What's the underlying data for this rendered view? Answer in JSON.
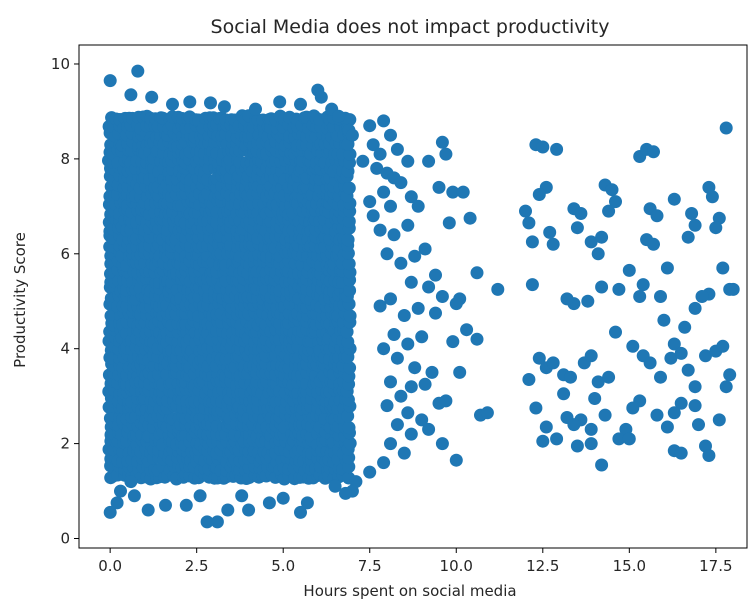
{
  "chart_data": {
    "type": "scatter",
    "title": "Social Media does not impact productivity",
    "xlabel": "Hours spent on social media",
    "ylabel": "Productivity Score",
    "xlim": [
      -0.9,
      18.4
    ],
    "ylim": [
      -0.2,
      10.4
    ],
    "xticks": [
      0.0,
      2.5,
      5.0,
      7.5,
      10.0,
      12.5,
      15.0,
      17.5
    ],
    "xtick_labels": [
      "0.0",
      "2.5",
      "5.0",
      "7.5",
      "10.0",
      "12.5",
      "15.0",
      "17.5"
    ],
    "yticks": [
      0,
      2,
      4,
      6,
      8,
      10
    ],
    "ytick_labels": [
      "0",
      "2",
      "4",
      "6",
      "8",
      "10"
    ],
    "grid": false,
    "marker_color": "#1f77b4",
    "dense_region": {
      "x_range": [
        0.0,
        7.0
      ],
      "y_range": [
        1.3,
        8.9
      ]
    },
    "series": [
      {
        "points": [
          [
            0.0,
            9.65
          ],
          [
            0.8,
            9.85
          ],
          [
            0.6,
            9.35
          ],
          [
            1.2,
            9.3
          ],
          [
            1.8,
            9.15
          ],
          [
            2.3,
            9.2
          ],
          [
            2.9,
            9.18
          ],
          [
            3.3,
            9.1
          ],
          [
            4.2,
            9.05
          ],
          [
            4.9,
            9.2
          ],
          [
            5.5,
            9.15
          ],
          [
            6.0,
            9.45
          ],
          [
            6.1,
            9.3
          ],
          [
            6.4,
            9.05
          ],
          [
            6.6,
            8.9
          ],
          [
            6.9,
            8.6
          ],
          [
            7.0,
            8.5
          ],
          [
            7.5,
            8.7
          ],
          [
            7.6,
            8.3
          ],
          [
            7.9,
            8.8
          ],
          [
            8.1,
            8.5
          ],
          [
            8.3,
            8.2
          ],
          [
            7.8,
            8.1
          ],
          [
            7.3,
            7.95
          ],
          [
            7.7,
            7.8
          ],
          [
            8.0,
            7.7
          ],
          [
            8.2,
            7.6
          ],
          [
            8.6,
            7.95
          ],
          [
            8.4,
            7.5
          ],
          [
            7.9,
            7.3
          ],
          [
            7.5,
            7.1
          ],
          [
            8.1,
            7.0
          ],
          [
            8.7,
            7.2
          ],
          [
            8.9,
            7.0
          ],
          [
            9.2,
            7.95
          ],
          [
            9.6,
            8.35
          ],
          [
            9.7,
            8.1
          ],
          [
            9.9,
            7.3
          ],
          [
            9.5,
            7.4
          ],
          [
            9.8,
            6.65
          ],
          [
            10.4,
            6.75
          ],
          [
            10.2,
            7.3
          ],
          [
            7.6,
            6.8
          ],
          [
            7.8,
            6.5
          ],
          [
            8.2,
            6.4
          ],
          [
            8.6,
            6.6
          ],
          [
            8.0,
            6.0
          ],
          [
            8.4,
            5.8
          ],
          [
            8.8,
            5.95
          ],
          [
            9.1,
            6.1
          ],
          [
            9.4,
            5.55
          ],
          [
            9.2,
            5.3
          ],
          [
            9.6,
            5.1
          ],
          [
            8.7,
            5.4
          ],
          [
            8.1,
            5.05
          ],
          [
            7.8,
            4.9
          ],
          [
            8.5,
            4.7
          ],
          [
            8.9,
            4.85
          ],
          [
            9.4,
            4.75
          ],
          [
            10.1,
            5.05
          ],
          [
            10.6,
            5.6
          ],
          [
            11.2,
            5.25
          ],
          [
            10.0,
            4.95
          ],
          [
            10.3,
            4.4
          ],
          [
            10.6,
            4.2
          ],
          [
            9.9,
            4.15
          ],
          [
            8.2,
            4.3
          ],
          [
            8.6,
            4.1
          ],
          [
            9.0,
            4.25
          ],
          [
            7.9,
            4.0
          ],
          [
            8.3,
            3.8
          ],
          [
            8.8,
            3.6
          ],
          [
            9.3,
            3.5
          ],
          [
            10.1,
            3.5
          ],
          [
            8.1,
            3.3
          ],
          [
            8.7,
            3.2
          ],
          [
            9.1,
            3.25
          ],
          [
            9.7,
            2.9
          ],
          [
            8.4,
            3.0
          ],
          [
            8.0,
            2.8
          ],
          [
            8.6,
            2.65
          ],
          [
            9.0,
            2.5
          ],
          [
            9.5,
            2.85
          ],
          [
            10.7,
            2.6
          ],
          [
            10.9,
            2.65
          ],
          [
            8.3,
            2.4
          ],
          [
            8.7,
            2.2
          ],
          [
            9.2,
            2.3
          ],
          [
            9.6,
            2.0
          ],
          [
            10.0,
            1.65
          ],
          [
            8.1,
            2.0
          ],
          [
            8.5,
            1.8
          ],
          [
            7.9,
            1.6
          ],
          [
            7.5,
            1.4
          ],
          [
            7.1,
            1.2
          ],
          [
            7.0,
            1.0
          ],
          [
            6.5,
            1.1
          ],
          [
            6.8,
            0.95
          ],
          [
            5.7,
            0.75
          ],
          [
            5.5,
            0.55
          ],
          [
            5.0,
            0.85
          ],
          [
            4.6,
            0.75
          ],
          [
            4.0,
            0.6
          ],
          [
            3.8,
            0.9
          ],
          [
            3.4,
            0.6
          ],
          [
            3.1,
            0.35
          ],
          [
            2.8,
            0.35
          ],
          [
            2.6,
            0.9
          ],
          [
            2.2,
            0.7
          ],
          [
            1.6,
            0.7
          ],
          [
            1.1,
            0.6
          ],
          [
            0.7,
            0.9
          ],
          [
            0.2,
            0.75
          ],
          [
            0.0,
            0.55
          ],
          [
            0.3,
            1.0
          ],
          [
            0.6,
            1.2
          ],
          [
            12.3,
            8.3
          ],
          [
            12.5,
            8.25
          ],
          [
            12.9,
            8.2
          ],
          [
            12.6,
            7.4
          ],
          [
            12.4,
            7.25
          ],
          [
            12.0,
            6.9
          ],
          [
            12.1,
            6.65
          ],
          [
            12.2,
            6.25
          ],
          [
            12.7,
            6.45
          ],
          [
            12.8,
            6.2
          ],
          [
            13.4,
            6.95
          ],
          [
            13.6,
            6.85
          ],
          [
            13.5,
            6.55
          ],
          [
            13.9,
            6.25
          ],
          [
            14.1,
            6.0
          ],
          [
            14.2,
            6.35
          ],
          [
            14.3,
            7.45
          ],
          [
            14.5,
            7.35
          ],
          [
            14.6,
            7.1
          ],
          [
            14.4,
            6.9
          ],
          [
            15.3,
            8.05
          ],
          [
            15.5,
            8.2
          ],
          [
            15.7,
            8.15
          ],
          [
            15.6,
            6.95
          ],
          [
            15.8,
            6.8
          ],
          [
            15.5,
            6.3
          ],
          [
            15.7,
            6.2
          ],
          [
            16.1,
            5.7
          ],
          [
            16.3,
            7.15
          ],
          [
            16.8,
            6.85
          ],
          [
            16.9,
            6.6
          ],
          [
            16.7,
            6.35
          ],
          [
            17.3,
            7.4
          ],
          [
            17.4,
            7.2
          ],
          [
            17.6,
            6.75
          ],
          [
            17.5,
            6.55
          ],
          [
            17.8,
            8.65
          ],
          [
            17.7,
            5.7
          ],
          [
            17.9,
            5.25
          ],
          [
            18.0,
            5.25
          ],
          [
            17.3,
            5.15
          ],
          [
            17.1,
            5.1
          ],
          [
            16.9,
            4.85
          ],
          [
            16.6,
            4.45
          ],
          [
            16.3,
            4.1
          ],
          [
            16.0,
            4.6
          ],
          [
            15.9,
            5.1
          ],
          [
            15.4,
            5.35
          ],
          [
            15.3,
            5.1
          ],
          [
            15.0,
            5.65
          ],
          [
            14.7,
            5.25
          ],
          [
            14.2,
            5.3
          ],
          [
            13.8,
            5.0
          ],
          [
            13.4,
            4.95
          ],
          [
            13.2,
            5.05
          ],
          [
            12.2,
            5.35
          ],
          [
            12.4,
            3.8
          ],
          [
            12.6,
            3.6
          ],
          [
            12.8,
            3.7
          ],
          [
            13.1,
            3.45
          ],
          [
            13.3,
            3.4
          ],
          [
            13.7,
            3.7
          ],
          [
            13.9,
            3.85
          ],
          [
            14.1,
            3.3
          ],
          [
            14.4,
            3.4
          ],
          [
            14.6,
            4.35
          ],
          [
            15.1,
            4.05
          ],
          [
            15.4,
            3.85
          ],
          [
            15.6,
            3.7
          ],
          [
            15.9,
            3.4
          ],
          [
            16.2,
            3.8
          ],
          [
            16.5,
            3.9
          ],
          [
            16.7,
            3.55
          ],
          [
            16.9,
            3.2
          ],
          [
            17.2,
            3.85
          ],
          [
            17.5,
            3.95
          ],
          [
            17.7,
            4.05
          ],
          [
            17.9,
            3.45
          ],
          [
            17.8,
            3.2
          ],
          [
            17.6,
            2.5
          ],
          [
            17.2,
            1.95
          ],
          [
            16.9,
            2.8
          ],
          [
            16.5,
            2.85
          ],
          [
            16.3,
            2.65
          ],
          [
            16.1,
            2.35
          ],
          [
            15.8,
            2.6
          ],
          [
            15.3,
            2.9
          ],
          [
            15.1,
            2.75
          ],
          [
            14.9,
            2.3
          ],
          [
            14.7,
            2.1
          ],
          [
            14.3,
            2.6
          ],
          [
            13.9,
            2.3
          ],
          [
            13.6,
            2.5
          ],
          [
            13.4,
            2.4
          ],
          [
            13.2,
            2.55
          ],
          [
            12.9,
            2.1
          ],
          [
            12.6,
            2.35
          ],
          [
            12.5,
            2.05
          ],
          [
            12.1,
            3.35
          ],
          [
            12.3,
            2.75
          ],
          [
            13.1,
            3.05
          ],
          [
            14.2,
            1.55
          ],
          [
            13.9,
            2.0
          ],
          [
            13.5,
            1.95
          ],
          [
            16.3,
            1.85
          ],
          [
            16.5,
            1.8
          ],
          [
            17.0,
            2.4
          ],
          [
            17.3,
            1.75
          ],
          [
            15.0,
            2.1
          ],
          [
            14.0,
            2.95
          ]
        ]
      }
    ]
  }
}
